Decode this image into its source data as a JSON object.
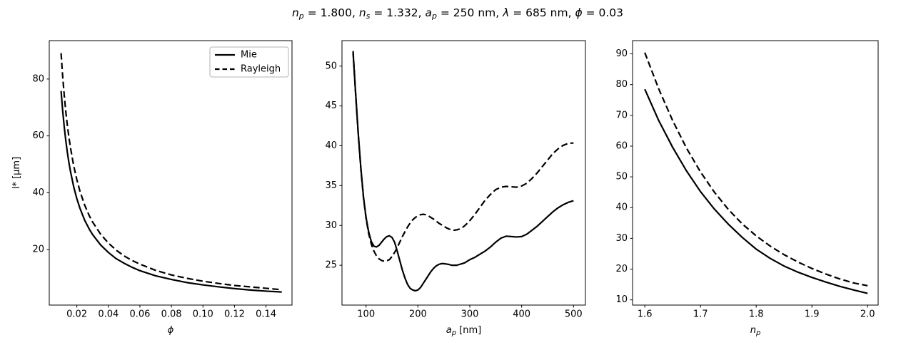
{
  "title": {
    "parts": [
      {
        "text": "n",
        "style": "it"
      },
      {
        "text": "p",
        "style": "it-sub"
      },
      {
        "text": " = 1.800, ",
        "style": ""
      },
      {
        "text": "n",
        "style": "it"
      },
      {
        "text": "s",
        "style": "it-sub"
      },
      {
        "text": " = 1.332, ",
        "style": ""
      },
      {
        "text": "a",
        "style": "it"
      },
      {
        "text": "p",
        "style": "it-sub"
      },
      {
        "text": " = 250 nm, ",
        "style": ""
      },
      {
        "text": "λ",
        "style": "it"
      },
      {
        "text": " = 685 nm, ",
        "style": ""
      },
      {
        "text": "ϕ",
        "style": "it"
      },
      {
        "text": " = 0.03",
        "style": ""
      }
    ]
  },
  "legend": {
    "position": "upper-right-of-first-panel",
    "entries": [
      {
        "label": "Mie",
        "line": "solid"
      },
      {
        "label": "Rayleigh",
        "line": "dashed"
      }
    ]
  },
  "colors": {
    "line": "#000000",
    "background": "#ffffff",
    "legend_border": "#b3b3b3"
  },
  "chart_data": [
    {
      "type": "line",
      "name": "panel-phi",
      "xlabel_parts": [
        {
          "text": "ϕ",
          "it": true
        }
      ],
      "ylabel_parts": [
        {
          "text": "l* [μm]"
        }
      ],
      "xlim": [
        0.0025,
        0.1565
      ],
      "ylim": [
        0.5,
        93.5
      ],
      "grid": false,
      "xticks": {
        "values": [
          0.02,
          0.04,
          0.06,
          0.08,
          0.1,
          0.12,
          0.14
        ],
        "labels": [
          "0.02",
          "0.04",
          "0.06",
          "0.08",
          "0.10",
          "0.12",
          "0.14"
        ]
      },
      "yticks": {
        "values": [
          20,
          40,
          60,
          80
        ],
        "labels": [
          "20",
          "40",
          "60",
          "80"
        ]
      },
      "series": [
        {
          "name": "Mie",
          "style": "solid",
          "x": [
            0.01,
            0.011,
            0.012,
            0.013,
            0.014,
            0.015,
            0.016,
            0.018,
            0.02,
            0.022,
            0.025,
            0.028,
            0.03,
            0.035,
            0.04,
            0.045,
            0.05,
            0.055,
            0.06,
            0.07,
            0.08,
            0.09,
            0.1,
            0.11,
            0.12,
            0.13,
            0.14,
            0.15
          ],
          "y": [
            75.8,
            68.9,
            63.2,
            58.3,
            54.1,
            50.5,
            47.4,
            42.1,
            37.9,
            34.5,
            30.3,
            27.1,
            25.3,
            21.7,
            19.0,
            16.8,
            15.2,
            13.8,
            12.6,
            10.8,
            9.5,
            8.4,
            7.6,
            6.9,
            6.3,
            5.8,
            5.4,
            5.1
          ]
        },
        {
          "name": "Rayleigh",
          "style": "dashed",
          "x": [
            0.01,
            0.011,
            0.012,
            0.013,
            0.014,
            0.015,
            0.016,
            0.018,
            0.02,
            0.022,
            0.025,
            0.028,
            0.03,
            0.035,
            0.04,
            0.045,
            0.05,
            0.055,
            0.06,
            0.07,
            0.08,
            0.09,
            0.1,
            0.11,
            0.12,
            0.13,
            0.14,
            0.15
          ],
          "y": [
            89.1,
            81.0,
            74.3,
            68.5,
            63.6,
            59.4,
            55.7,
            49.5,
            44.6,
            40.5,
            35.6,
            31.8,
            29.7,
            25.5,
            22.3,
            19.8,
            17.8,
            16.2,
            14.9,
            12.7,
            11.1,
            9.9,
            8.9,
            8.1,
            7.4,
            6.9,
            6.4,
            5.9
          ]
        }
      ]
    },
    {
      "type": "line",
      "name": "panel-particle-radius",
      "xlabel_parts": [
        {
          "text": "a",
          "it": true
        },
        {
          "text": "p",
          "it": true,
          "sub": true
        },
        {
          "text": " [nm]"
        }
      ],
      "xlim": [
        53.6,
        523
      ],
      "ylim": [
        20.0,
        53.2
      ],
      "grid": false,
      "xticks": {
        "values": [
          100,
          200,
          300,
          400,
          500
        ],
        "labels": [
          "100",
          "200",
          "300",
          "400",
          "500"
        ]
      },
      "yticks": {
        "values": [
          25,
          30,
          35,
          40,
          45,
          50
        ],
        "labels": [
          "25",
          "30",
          "35",
          "40",
          "45",
          "50"
        ]
      },
      "series": [
        {
          "name": "Mie",
          "style": "solid",
          "x": [
            75,
            80,
            85,
            90,
            95,
            100,
            105,
            110,
            115,
            120,
            125,
            130,
            135,
            140,
            145,
            150,
            155,
            160,
            165,
            170,
            175,
            180,
            185,
            190,
            195,
            200,
            205,
            210,
            215,
            220,
            225,
            230,
            235,
            240,
            245,
            250,
            255,
            260,
            265,
            270,
            275,
            280,
            285,
            290,
            295,
            300,
            310,
            320,
            330,
            340,
            350,
            360,
            370,
            380,
            390,
            400,
            410,
            420,
            430,
            440,
            450,
            460,
            470,
            480,
            490,
            500
          ],
          "y": [
            51.7,
            46.5,
            41.5,
            37.2,
            33.6,
            31.0,
            29.2,
            28.0,
            27.4,
            27.3,
            27.5,
            27.9,
            28.3,
            28.6,
            28.7,
            28.5,
            27.9,
            26.8,
            25.6,
            24.4,
            23.4,
            22.6,
            22.1,
            21.9,
            21.8,
            21.9,
            22.2,
            22.7,
            23.2,
            23.7,
            24.2,
            24.6,
            24.9,
            25.1,
            25.2,
            25.2,
            25.15,
            25.1,
            25.0,
            25.0,
            25.0,
            25.1,
            25.2,
            25.3,
            25.5,
            25.7,
            26.0,
            26.4,
            26.8,
            27.3,
            27.9,
            28.4,
            28.65,
            28.6,
            28.55,
            28.6,
            28.9,
            29.4,
            29.9,
            30.5,
            31.1,
            31.7,
            32.2,
            32.6,
            32.9,
            33.1
          ]
        },
        {
          "name": "Rayleigh",
          "style": "dashed",
          "x": [
            75,
            80,
            85,
            90,
            95,
            100,
            105,
            110,
            115,
            120,
            125,
            130,
            135,
            140,
            145,
            150,
            155,
            160,
            165,
            170,
            175,
            180,
            185,
            190,
            195,
            200,
            205,
            210,
            215,
            220,
            225,
            230,
            235,
            240,
            245,
            250,
            255,
            260,
            265,
            270,
            275,
            280,
            285,
            290,
            295,
            300,
            310,
            320,
            330,
            340,
            350,
            360,
            370,
            380,
            390,
            400,
            410,
            420,
            430,
            440,
            450,
            460,
            470,
            480,
            490,
            500
          ],
          "y": [
            51.9,
            46.4,
            41.4,
            37.1,
            33.5,
            30.9,
            29.0,
            27.7,
            26.8,
            26.2,
            25.8,
            25.6,
            25.5,
            25.55,
            25.7,
            26.1,
            26.6,
            27.2,
            27.9,
            28.6,
            29.2,
            29.8,
            30.3,
            30.7,
            31.0,
            31.2,
            31.35,
            31.4,
            31.35,
            31.2,
            31.0,
            30.8,
            30.55,
            30.3,
            30.1,
            29.9,
            29.7,
            29.55,
            29.45,
            29.4,
            29.45,
            29.55,
            29.7,
            29.95,
            30.25,
            30.6,
            31.4,
            32.3,
            33.2,
            33.9,
            34.5,
            34.8,
            34.9,
            34.85,
            34.8,
            34.95,
            35.3,
            35.9,
            36.6,
            37.4,
            38.2,
            39.0,
            39.6,
            40.05,
            40.3,
            40.35
          ]
        }
      ]
    },
    {
      "type": "line",
      "name": "panel-refractive-index",
      "xlabel_parts": [
        {
          "text": "n",
          "it": true
        },
        {
          "text": "p",
          "it": true,
          "sub": true
        }
      ],
      "xlim": [
        1.578,
        2.019
      ],
      "ylim": [
        8.3,
        94.3
      ],
      "grid": false,
      "xticks": {
        "values": [
          1.6,
          1.7,
          1.8,
          1.9,
          2.0
        ],
        "labels": [
          "1.6",
          "1.7",
          "1.8",
          "1.9",
          "2.0"
        ]
      },
      "yticks": {
        "values": [
          10,
          20,
          30,
          40,
          50,
          60,
          70,
          80,
          90
        ],
        "labels": [
          "10",
          "20",
          "30",
          "40",
          "50",
          "60",
          "70",
          "80",
          "90"
        ]
      },
      "series": [
        {
          "name": "Mie",
          "style": "solid",
          "x": [
            1.6,
            1.625,
            1.65,
            1.675,
            1.7,
            1.725,
            1.75,
            1.775,
            1.8,
            1.825,
            1.85,
            1.875,
            1.9,
            1.925,
            1.95,
            1.975,
            2.0
          ],
          "y": [
            78.5,
            68.3,
            59.6,
            51.9,
            45.2,
            39.5,
            34.6,
            30.3,
            26.5,
            23.5,
            21.0,
            19.0,
            17.3,
            15.8,
            14.4,
            13.2,
            12.1
          ]
        },
        {
          "name": "Rayleigh",
          "style": "dashed",
          "x": [
            1.6,
            1.625,
            1.65,
            1.675,
            1.7,
            1.725,
            1.75,
            1.775,
            1.8,
            1.825,
            1.85,
            1.875,
            1.9,
            1.925,
            1.95,
            1.975,
            2.0
          ],
          "y": [
            90.4,
            78.6,
            68.3,
            59.3,
            51.6,
            45.0,
            39.4,
            34.7,
            30.8,
            27.5,
            24.7,
            22.3,
            20.2,
            18.4,
            16.8,
            15.5,
            14.6
          ]
        }
      ]
    }
  ]
}
